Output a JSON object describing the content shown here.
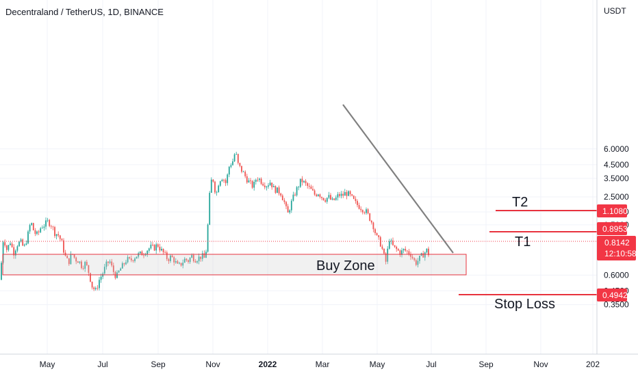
{
  "header": {
    "title": "Decentraland / TetherUS, 1D, BINANCE"
  },
  "chart_data": {
    "type": "candlestick",
    "title": "Decentraland / TetherUS, 1D, BINANCE",
    "y_unit": "USDT",
    "y_scale": "log",
    "y_ticks": [
      "6.0000",
      "4.5000",
      "3.5000",
      "2.5000",
      "1.9000",
      "1.5000",
      "0.6000",
      "0.4500",
      "0.3500"
    ],
    "x_ticks": [
      "May",
      "Jul",
      "Sep",
      "Nov",
      "2022",
      "Mar",
      "May",
      "Jul",
      "Sep",
      "Nov",
      "202"
    ],
    "price_badges": [
      {
        "label": "1.1080",
        "value": 1.108,
        "color": "#f23645"
      },
      {
        "label": "0.8953",
        "value": 0.8953,
        "color": "#f23645"
      },
      {
        "label": "0.4942",
        "value": 0.4942,
        "color": "#f23645"
      }
    ],
    "current_price": {
      "value": "0.8142",
      "countdown": "12:10:58",
      "color": "#f23645"
    },
    "annotations": {
      "buy_zone": "Buy Zone",
      "t1": "T1",
      "t2": "T2",
      "stop_loss": "Stop Loss"
    },
    "colors": {
      "up": "#26a69a",
      "down": "#ef5350",
      "level": "#e8323d",
      "trendline": "#808080"
    },
    "price_path": [
      [
        0,
        0.55
      ],
      [
        5,
        1.2
      ],
      [
        10,
        0.95
      ],
      [
        15,
        1.1
      ],
      [
        20,
        0.9
      ],
      [
        25,
        1.05
      ],
      [
        30,
        1.1
      ],
      [
        35,
        0.98
      ],
      [
        40,
        1.2
      ],
      [
        45,
        1.6
      ],
      [
        50,
        1.3
      ],
      [
        55,
        1.25
      ],
      [
        60,
        1.45
      ],
      [
        65,
        1.5
      ],
      [
        70,
        1.6
      ],
      [
        75,
        1.5
      ],
      [
        80,
        1.3
      ],
      [
        85,
        1.25
      ],
      [
        90,
        1.1
      ],
      [
        95,
        0.85
      ],
      [
        100,
        0.75
      ],
      [
        105,
        0.9
      ],
      [
        110,
        0.8
      ],
      [
        115,
        0.78
      ],
      [
        120,
        0.7
      ],
      [
        125,
        0.75
      ],
      [
        130,
        0.62
      ],
      [
        135,
        0.48
      ],
      [
        140,
        0.45
      ],
      [
        145,
        0.55
      ],
      [
        150,
        0.62
      ],
      [
        155,
        0.72
      ],
      [
        160,
        0.78
      ],
      [
        165,
        0.65
      ],
      [
        170,
        0.58
      ],
      [
        175,
        0.66
      ],
      [
        180,
        0.72
      ],
      [
        185,
        0.8
      ],
      [
        190,
        0.78
      ],
      [
        195,
        0.82
      ],
      [
        200,
        0.86
      ],
      [
        205,
        0.88
      ],
      [
        210,
        0.9
      ],
      [
        215,
        0.95
      ],
      [
        220,
        1.0
      ],
      [
        225,
        0.98
      ],
      [
        230,
        1.05
      ],
      [
        235,
        0.95
      ],
      [
        240,
        0.88
      ],
      [
        245,
        0.8
      ],
      [
        250,
        0.84
      ],
      [
        255,
        0.78
      ],
      [
        260,
        0.7
      ],
      [
        265,
        0.74
      ],
      [
        270,
        0.8
      ],
      [
        275,
        0.78
      ],
      [
        280,
        0.85
      ],
      [
        285,
        0.8
      ],
      [
        290,
        0.82
      ],
      [
        295,
        0.85
      ],
      [
        300,
        0.8
      ],
      [
        303,
        1.3
      ],
      [
        306,
        2.5
      ],
      [
        310,
        3.8
      ],
      [
        313,
        3.0
      ],
      [
        316,
        2.6
      ],
      [
        320,
        3.4
      ],
      [
        325,
        3.6
      ],
      [
        330,
        3.2
      ],
      [
        335,
        4.4
      ],
      [
        340,
        4.8
      ],
      [
        344,
        5.8
      ],
      [
        347,
        4.6
      ],
      [
        350,
        4.3
      ],
      [
        355,
        3.9
      ],
      [
        360,
        3.5
      ],
      [
        365,
        3.2
      ],
      [
        370,
        3.0
      ],
      [
        375,
        3.6
      ],
      [
        380,
        3.4
      ],
      [
        385,
        3.2
      ],
      [
        390,
        3.1
      ],
      [
        395,
        3.3
      ],
      [
        400,
        2.9
      ],
      [
        405,
        2.8
      ],
      [
        410,
        2.7
      ],
      [
        415,
        2.3
      ],
      [
        418,
        2.0
      ],
      [
        420,
        1.8
      ],
      [
        425,
        2.2
      ],
      [
        430,
        2.6
      ],
      [
        435,
        3.0
      ],
      [
        440,
        3.4
      ],
      [
        445,
        3.2
      ],
      [
        450,
        3.0
      ],
      [
        455,
        2.8
      ],
      [
        460,
        2.6
      ],
      [
        465,
        2.7
      ],
      [
        470,
        2.5
      ],
      [
        475,
        2.4
      ],
      [
        480,
        2.5
      ],
      [
        485,
        2.3
      ],
      [
        490,
        2.4
      ],
      [
        495,
        2.6
      ],
      [
        500,
        2.55
      ],
      [
        505,
        2.7
      ],
      [
        510,
        2.6
      ],
      [
        515,
        2.4
      ],
      [
        520,
        2.2
      ],
      [
        525,
        2.1
      ],
      [
        530,
        2.0
      ],
      [
        535,
        1.9
      ],
      [
        540,
        1.7
      ],
      [
        545,
        1.5
      ],
      [
        550,
        1.2
      ],
      [
        555,
        1.1
      ],
      [
        560,
        0.9
      ],
      [
        563,
        0.75
      ],
      [
        565,
        0.8
      ],
      [
        568,
        1.2
      ],
      [
        572,
        1.05
      ],
      [
        576,
        0.98
      ],
      [
        580,
        0.95
      ],
      [
        585,
        0.9
      ],
      [
        590,
        0.95
      ],
      [
        595,
        0.92
      ],
      [
        600,
        0.88
      ],
      [
        605,
        0.78
      ],
      [
        608,
        0.75
      ],
      [
        612,
        0.8
      ],
      [
        616,
        0.85
      ],
      [
        620,
        0.9
      ],
      [
        624,
        0.95
      ],
      [
        628,
        0.82
      ]
    ]
  }
}
